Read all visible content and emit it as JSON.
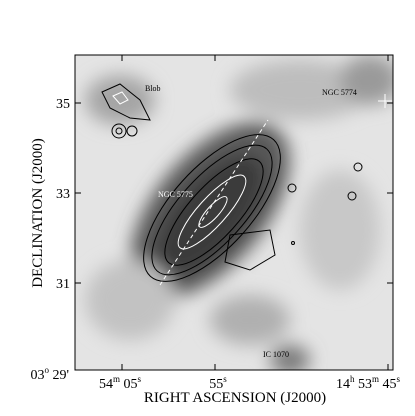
{
  "figure": {
    "y_axis": {
      "label": "DECLINATION (J2000)",
      "ticks": [
        [
          "35"
        ],
        [
          "33"
        ],
        [
          "31"
        ],
        [
          "03",
          "o",
          " 29'"
        ]
      ]
    },
    "x_axis": {
      "label": "RIGHT ASCENSION (J2000)",
      "ticks": [
        [
          "54",
          "m",
          " 05",
          "s"
        ],
        [
          "55",
          "s"
        ],
        [
          "14",
          "h",
          " 53",
          "m",
          " 45",
          "s"
        ]
      ]
    },
    "annotations": {
      "blob": "Blob",
      "ngc5774": "NGC 5774",
      "ngc5775": "NGC 5775",
      "ic1070": "IC 1070"
    }
  }
}
